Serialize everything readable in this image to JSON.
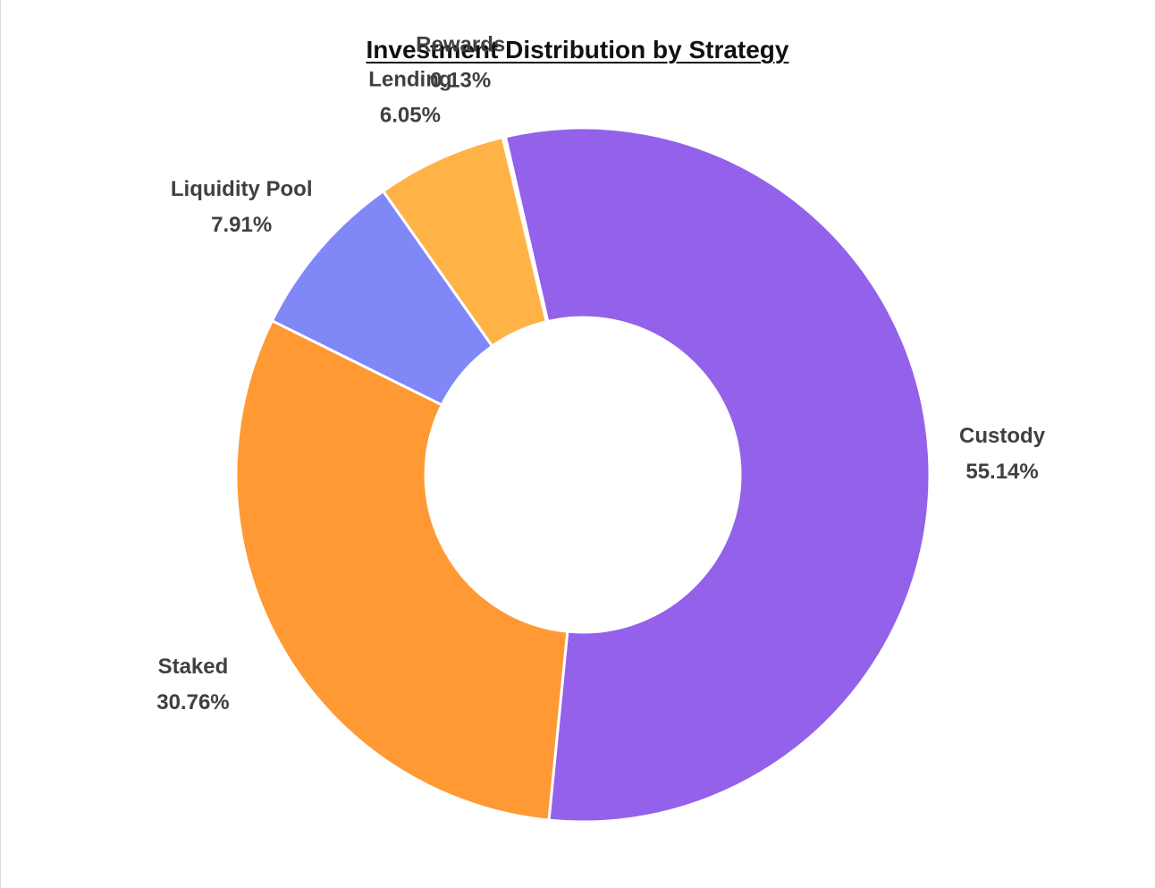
{
  "chart_data": {
    "type": "pie",
    "variant": "donut",
    "title": "Investment Distribution by Strategy",
    "categories": [
      "Custody",
      "Staked",
      "Liquidity Pool",
      "Lending",
      "Rewards"
    ],
    "values": [
      55.14,
      30.76,
      7.91,
      6.05,
      0.13
    ],
    "value_labels": [
      "55.14%",
      "30.76%",
      "7.91%",
      "6.05%",
      "0.13%"
    ],
    "colors": [
      "#9461EA",
      "#FF9933",
      "#8088F8",
      "#FFB347",
      "#FFB347"
    ],
    "start_angle": "slightly left of 12 o'clock",
    "direction": "clockwise",
    "legend": "none",
    "data_labels": "outside"
  }
}
